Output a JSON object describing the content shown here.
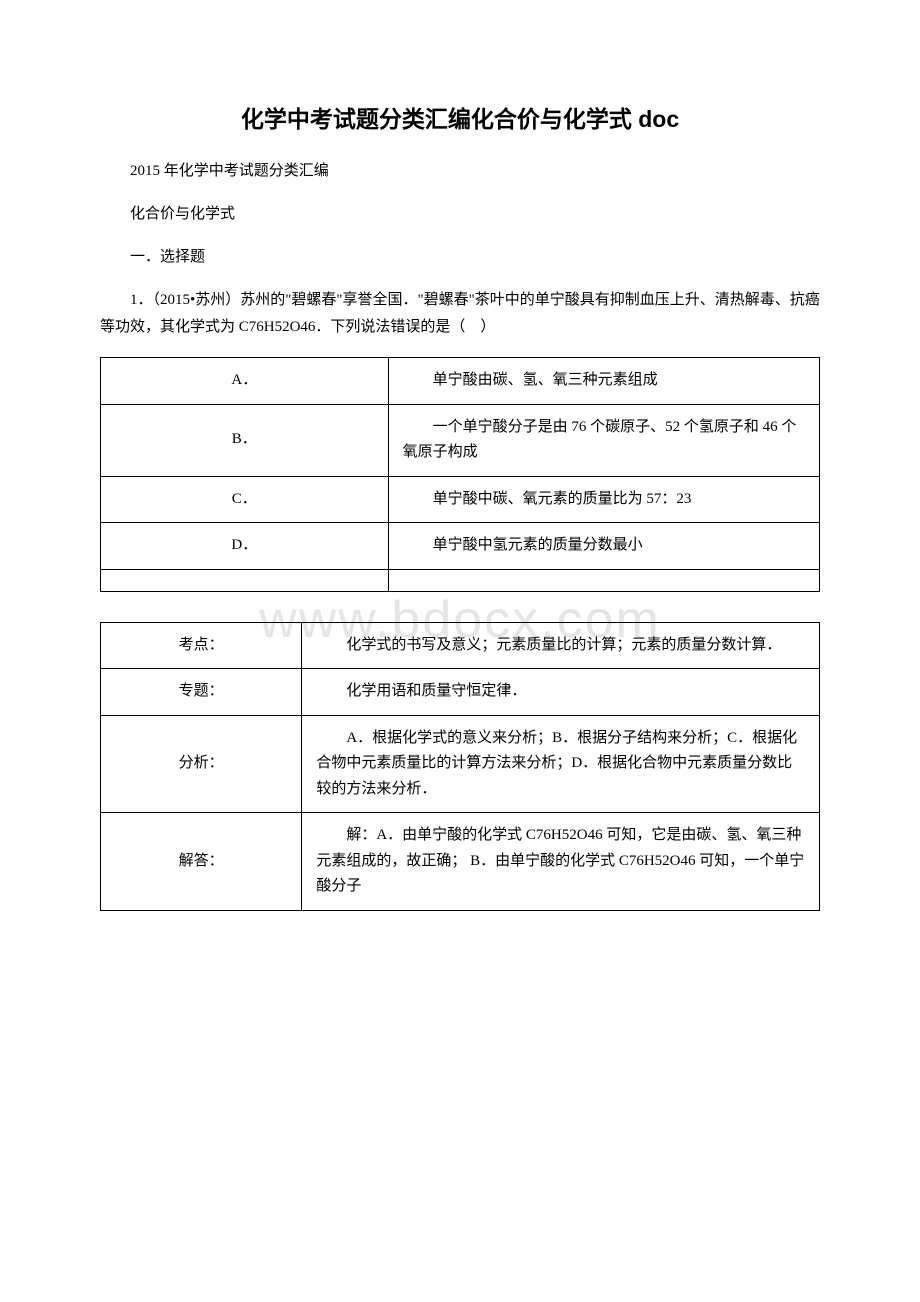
{
  "title": "化学中考试题分类汇编化合价与化学式 doc",
  "intro": {
    "line1": "2015 年化学中考试题分类汇编",
    "line2": "化合价与化学式",
    "line3": "一．选择题",
    "line4": "1．（2015•苏州）苏州的\"碧螺春\"享誉全国．\"碧螺春\"茶叶中的单宁酸具有抑制血压上升、清热解毒、抗癌等功效，其化学式为 C76H52O46．下列说法错误的是（　）"
  },
  "options_table": {
    "rows": [
      {
        "label": "A．",
        "content": "单宁酸由碳、氢、氧三种元素组成"
      },
      {
        "label": "B．",
        "content": "一个单宁酸分子是由 76 个碳原子、52 个氢原子和 46 个氧原子构成"
      },
      {
        "label": "C．",
        "content": "单宁酸中碳、氧元素的质量比为 57：23"
      },
      {
        "label": "D．",
        "content": "单宁酸中氢元素的质量分数最小"
      }
    ]
  },
  "analysis_table": {
    "rows": [
      {
        "label": "考点：",
        "content": "化学式的书写及意义；元素质量比的计算；元素的质量分数计算．"
      },
      {
        "label": "专题：",
        "content": "化学用语和质量守恒定律．"
      },
      {
        "label": "分析：",
        "content": "A．根据化学式的意义来分析；B．根据分子结构来分析；C．根据化合物中元素质量比的计算方法来分析；D．根据化合物中元素质量分数比较的方法来分析．"
      },
      {
        "label": "解答：",
        "content": "解：A．由单宁酸的化学式 C76H52O46 可知，它是由碳、氢、氧三种元素组成的，故正确；\nB．由单宁酸的化学式 C76H52O46 可知，一个单宁酸分子"
      }
    ]
  },
  "watermark": "www.bdocx.com",
  "colors": {
    "text": "#000000",
    "border": "#000000",
    "background": "#ffffff",
    "watermark": "#e5e5e5"
  }
}
